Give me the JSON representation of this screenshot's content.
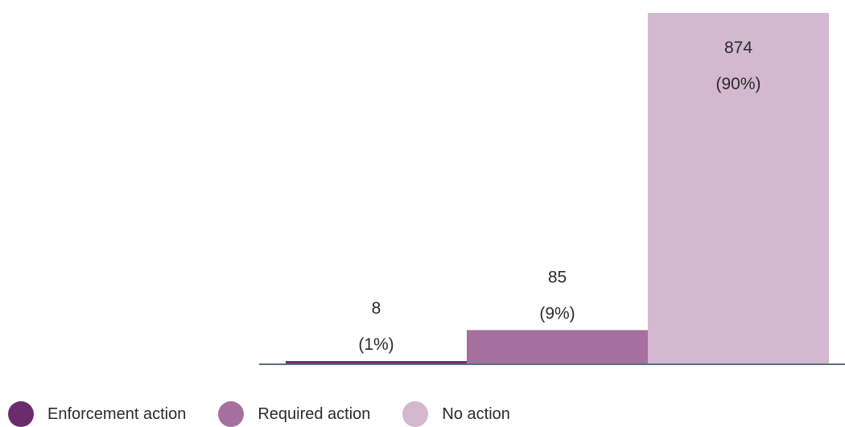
{
  "chart_data": {
    "type": "bar",
    "categories": [
      "Enforcement action",
      "Required action",
      "No action"
    ],
    "values": [
      8,
      85,
      874
    ],
    "percent_labels": [
      "(1%)",
      "(9%)",
      "(90%)"
    ],
    "value_labels": [
      "8",
      "85",
      "874"
    ],
    "colors": [
      "#6b2c6e",
      "#a5709d",
      "#d3b8d0"
    ],
    "ylim": [
      0,
      900
    ],
    "grid": false,
    "legend_position": "bottom-left",
    "axis_color": "#5b6e85"
  },
  "legend": {
    "items": [
      {
        "label": "Enforcement action",
        "color": "#6b2c6e"
      },
      {
        "label": "Required action",
        "color": "#a5709d"
      },
      {
        "label": "No action",
        "color": "#d3b8d0"
      }
    ]
  }
}
